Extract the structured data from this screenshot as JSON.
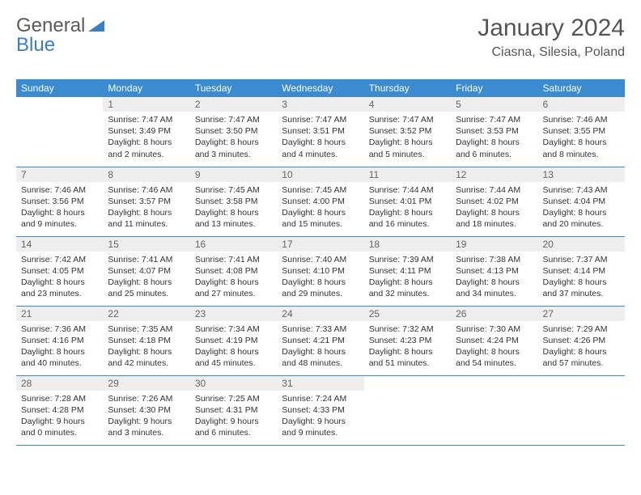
{
  "logo": {
    "part1": "General",
    "part2": "Blue"
  },
  "title": {
    "month": "January 2024",
    "location": "Ciasna, Silesia, Poland"
  },
  "colors": {
    "header_bg": "#3a8bd0",
    "header_text": "#ffffff",
    "daynum_bg": "#eeeeee",
    "daynum_text": "#666666",
    "border": "#3a8bd0",
    "body_text": "#333333",
    "logo_gray": "#5a5a5a",
    "logo_blue": "#3a7fc3"
  },
  "typography": {
    "month_fontsize": 30,
    "location_fontsize": 16,
    "weekday_fontsize": 12,
    "daynum_fontsize": 12,
    "cell_fontsize": 10.5
  },
  "weekdays": [
    "Sunday",
    "Monday",
    "Tuesday",
    "Wednesday",
    "Thursday",
    "Friday",
    "Saturday"
  ],
  "weeks": [
    [
      null,
      {
        "n": "1",
        "sunrise": "7:47 AM",
        "sunset": "3:49 PM",
        "daylight": "8 hours and 2 minutes."
      },
      {
        "n": "2",
        "sunrise": "7:47 AM",
        "sunset": "3:50 PM",
        "daylight": "8 hours and 3 minutes."
      },
      {
        "n": "3",
        "sunrise": "7:47 AM",
        "sunset": "3:51 PM",
        "daylight": "8 hours and 4 minutes."
      },
      {
        "n": "4",
        "sunrise": "7:47 AM",
        "sunset": "3:52 PM",
        "daylight": "8 hours and 5 minutes."
      },
      {
        "n": "5",
        "sunrise": "7:47 AM",
        "sunset": "3:53 PM",
        "daylight": "8 hours and 6 minutes."
      },
      {
        "n": "6",
        "sunrise": "7:46 AM",
        "sunset": "3:55 PM",
        "daylight": "8 hours and 8 minutes."
      }
    ],
    [
      {
        "n": "7",
        "sunrise": "7:46 AM",
        "sunset": "3:56 PM",
        "daylight": "8 hours and 9 minutes."
      },
      {
        "n": "8",
        "sunrise": "7:46 AM",
        "sunset": "3:57 PM",
        "daylight": "8 hours and 11 minutes."
      },
      {
        "n": "9",
        "sunrise": "7:45 AM",
        "sunset": "3:58 PM",
        "daylight": "8 hours and 13 minutes."
      },
      {
        "n": "10",
        "sunrise": "7:45 AM",
        "sunset": "4:00 PM",
        "daylight": "8 hours and 15 minutes."
      },
      {
        "n": "11",
        "sunrise": "7:44 AM",
        "sunset": "4:01 PM",
        "daylight": "8 hours and 16 minutes."
      },
      {
        "n": "12",
        "sunrise": "7:44 AM",
        "sunset": "4:02 PM",
        "daylight": "8 hours and 18 minutes."
      },
      {
        "n": "13",
        "sunrise": "7:43 AM",
        "sunset": "4:04 PM",
        "daylight": "8 hours and 20 minutes."
      }
    ],
    [
      {
        "n": "14",
        "sunrise": "7:42 AM",
        "sunset": "4:05 PM",
        "daylight": "8 hours and 23 minutes."
      },
      {
        "n": "15",
        "sunrise": "7:41 AM",
        "sunset": "4:07 PM",
        "daylight": "8 hours and 25 minutes."
      },
      {
        "n": "16",
        "sunrise": "7:41 AM",
        "sunset": "4:08 PM",
        "daylight": "8 hours and 27 minutes."
      },
      {
        "n": "17",
        "sunrise": "7:40 AM",
        "sunset": "4:10 PM",
        "daylight": "8 hours and 29 minutes."
      },
      {
        "n": "18",
        "sunrise": "7:39 AM",
        "sunset": "4:11 PM",
        "daylight": "8 hours and 32 minutes."
      },
      {
        "n": "19",
        "sunrise": "7:38 AM",
        "sunset": "4:13 PM",
        "daylight": "8 hours and 34 minutes."
      },
      {
        "n": "20",
        "sunrise": "7:37 AM",
        "sunset": "4:14 PM",
        "daylight": "8 hours and 37 minutes."
      }
    ],
    [
      {
        "n": "21",
        "sunrise": "7:36 AM",
        "sunset": "4:16 PM",
        "daylight": "8 hours and 40 minutes."
      },
      {
        "n": "22",
        "sunrise": "7:35 AM",
        "sunset": "4:18 PM",
        "daylight": "8 hours and 42 minutes."
      },
      {
        "n": "23",
        "sunrise": "7:34 AM",
        "sunset": "4:19 PM",
        "daylight": "8 hours and 45 minutes."
      },
      {
        "n": "24",
        "sunrise": "7:33 AM",
        "sunset": "4:21 PM",
        "daylight": "8 hours and 48 minutes."
      },
      {
        "n": "25",
        "sunrise": "7:32 AM",
        "sunset": "4:23 PM",
        "daylight": "8 hours and 51 minutes."
      },
      {
        "n": "26",
        "sunrise": "7:30 AM",
        "sunset": "4:24 PM",
        "daylight": "8 hours and 54 minutes."
      },
      {
        "n": "27",
        "sunrise": "7:29 AM",
        "sunset": "4:26 PM",
        "daylight": "8 hours and 57 minutes."
      }
    ],
    [
      {
        "n": "28",
        "sunrise": "7:28 AM",
        "sunset": "4:28 PM",
        "daylight": "9 hours and 0 minutes."
      },
      {
        "n": "29",
        "sunrise": "7:26 AM",
        "sunset": "4:30 PM",
        "daylight": "9 hours and 3 minutes."
      },
      {
        "n": "30",
        "sunrise": "7:25 AM",
        "sunset": "4:31 PM",
        "daylight": "9 hours and 6 minutes."
      },
      {
        "n": "31",
        "sunrise": "7:24 AM",
        "sunset": "4:33 PM",
        "daylight": "9 hours and 9 minutes."
      },
      null,
      null,
      null
    ]
  ],
  "labels": {
    "sunrise": "Sunrise:",
    "sunset": "Sunset:",
    "daylight": "Daylight:"
  }
}
